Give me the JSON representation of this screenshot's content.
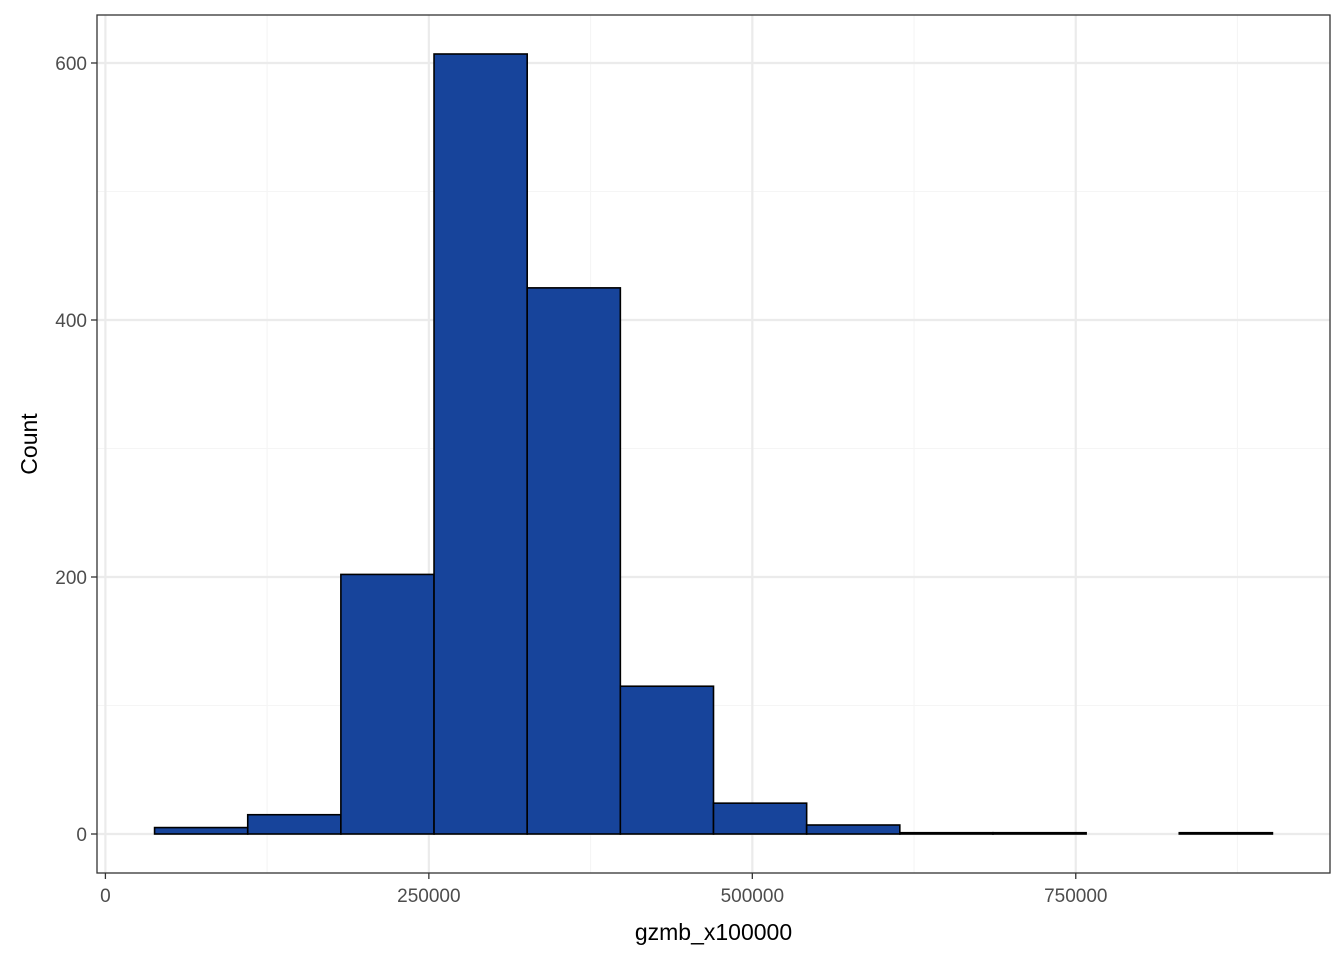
{
  "chart_data": {
    "type": "bar",
    "subtype": "histogram",
    "title": "",
    "xlabel": "gzmb_x100000",
    "ylabel": "Count",
    "bins": [
      {
        "x0": 38000,
        "x1": 110000,
        "count": 5
      },
      {
        "x0": 110000,
        "x1": 182000,
        "count": 15
      },
      {
        "x0": 182000,
        "x1": 254000,
        "count": 202
      },
      {
        "x0": 254000,
        "x1": 326000,
        "count": 607
      },
      {
        "x0": 326000,
        "x1": 398000,
        "count": 425
      },
      {
        "x0": 398000,
        "x1": 470000,
        "count": 115
      },
      {
        "x0": 470000,
        "x1": 542000,
        "count": 24
      },
      {
        "x0": 542000,
        "x1": 614000,
        "count": 7
      },
      {
        "x0": 614000,
        "x1": 686000,
        "count": 1
      },
      {
        "x0": 686000,
        "x1": 758000,
        "count": 1
      },
      {
        "x0": 758000,
        "x1": 830000,
        "count": 0
      },
      {
        "x0": 830000,
        "x1": 902000,
        "count": 1
      }
    ],
    "xlim": [
      -6500,
      946500
    ],
    "ylim": [
      -30.35,
      637.35
    ],
    "x_ticks": [
      0,
      250000,
      500000,
      750000
    ],
    "x_tick_labels": [
      "0",
      "250000",
      "500000",
      "750000"
    ],
    "x_minor_ticks": [
      125000,
      375000,
      625000,
      875000
    ],
    "y_ticks": [
      0,
      200,
      400,
      600
    ],
    "y_tick_labels": [
      "0",
      "200",
      "400",
      "600"
    ],
    "y_minor_ticks": [
      100,
      300,
      500
    ],
    "grid": true,
    "legend": "none",
    "colors": {
      "bar_fill": "#17449B",
      "bar_stroke": "#000000",
      "grid_major": "#EBEBEB",
      "grid_minor": "#F5F5F5",
      "panel_border": "#333333",
      "tick_label": "#4D4D4D",
      "axis_title": "#000000"
    }
  }
}
